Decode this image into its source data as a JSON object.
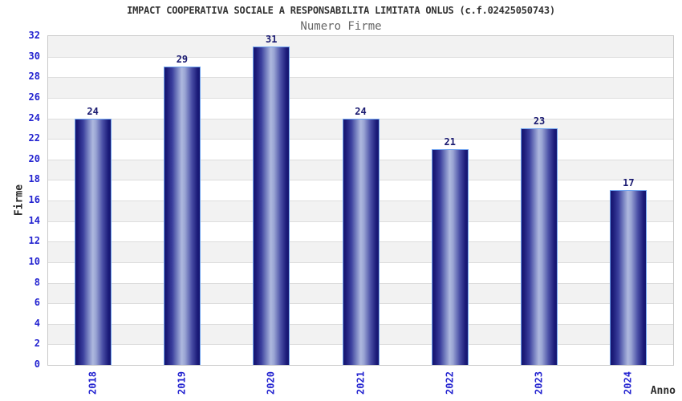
{
  "chart_data": {
    "type": "bar",
    "title": "IMPACT COOPERATIVA SOCIALE A RESPONSABILITA LIMITATA ONLUS (c.f.02425050743)",
    "subtitle": "Numero Firme",
    "xlabel": "Anno",
    "ylabel": "Firme",
    "categories": [
      "2018",
      "2019",
      "2020",
      "2021",
      "2022",
      "2023",
      "2024"
    ],
    "values": [
      24,
      29,
      31,
      24,
      21,
      23,
      17
    ],
    "ylim": [
      0,
      32
    ],
    "ytick_step": 2,
    "grid": "horizontal gridlines every 2 units with alternating shaded bands",
    "legend": "none",
    "colors": {
      "tick_label": "#2323d0",
      "value_label": "#191970",
      "title": "#333333",
      "subtitle": "#666666",
      "axis_title": "#2b2b2b",
      "band_shade": "#f2f2f2",
      "gridline": "#dddddd",
      "plot_border": "#c9c9c9",
      "bar_dark": "#14146e",
      "bar_light": "#aeb8de",
      "bar_border": "#6fa3f0",
      "background": "#ffffff"
    }
  }
}
